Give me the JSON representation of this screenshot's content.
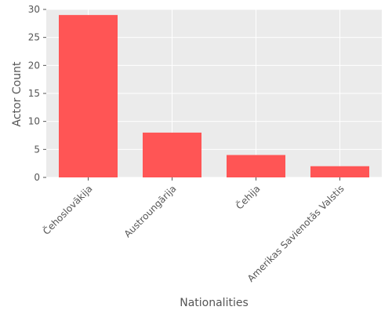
{
  "chart_data": {
    "type": "bar",
    "title": "",
    "xlabel": "Nationalities",
    "ylabel": "Actor Count",
    "categories": [
      "Čehoslovākija",
      "Austroungārija",
      "Čehija",
      "Amerikas Savienotās Valstis"
    ],
    "values": [
      29,
      8,
      4,
      2
    ],
    "ylim": [
      0,
      30
    ],
    "yticks": [
      0,
      5,
      10,
      15,
      20,
      25,
      30
    ],
    "grid": true,
    "bar_color": "#ff5555",
    "plot_background": "#ebebeb"
  }
}
